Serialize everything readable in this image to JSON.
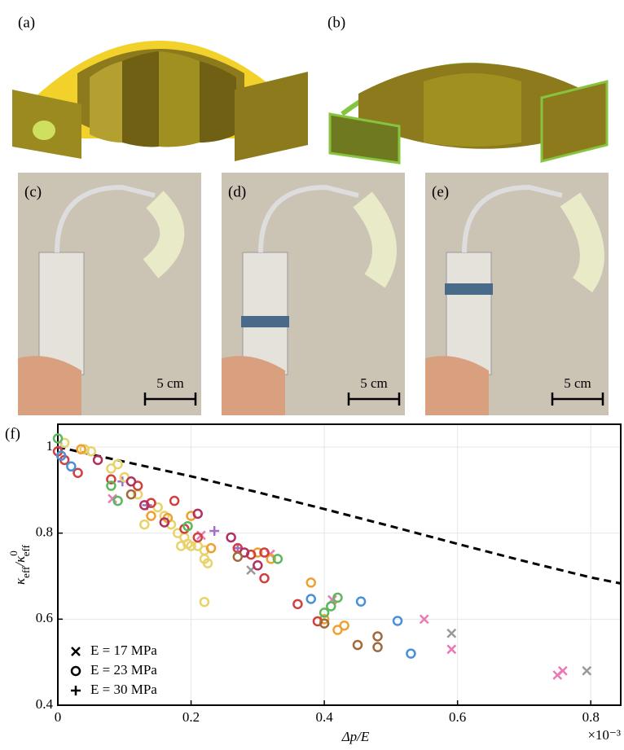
{
  "panels": {
    "a": "(a)",
    "b": "(b)",
    "c": "(c)",
    "d": "(d)",
    "e": "(e)"
  },
  "scale_bars": [
    "5 cm",
    "5 cm",
    "5 cm"
  ],
  "chart_data": {
    "type": "scatter",
    "panel_label": "(f)",
    "xlabel": "Δp/E",
    "x_multiplier": "×10⁻³",
    "ylabel": [
      "κ",
      "eff",
      "/κ",
      "0",
      "eff"
    ],
    "xlim": [
      0,
      0.845
    ],
    "ylim": [
      0.4,
      1.053
    ],
    "xticks": [
      0,
      0.2,
      0.4,
      0.6,
      0.8
    ],
    "yticks": [
      0.4,
      0.6,
      0.8,
      1
    ],
    "grid": true,
    "legend": [
      {
        "label": "E = 17 MPa",
        "marker": "x"
      },
      {
        "label": "E = 23 MPa",
        "marker": "o"
      },
      {
        "label": "E = 30 MPa",
        "marker": "+"
      }
    ],
    "legend_position": "lower left",
    "curve": {
      "x": [
        0,
        0.1,
        0.2,
        0.3,
        0.4,
        0.5,
        0.6,
        0.7,
        0.8,
        0.845
      ],
      "values": [
        1,
        0.966,
        0.932,
        0.895,
        0.856,
        0.816,
        0.775,
        0.735,
        0.697,
        0.683
      ],
      "color": "#000000",
      "dashed": true
    },
    "series": [
      {
        "marker": "x",
        "color": "#e87bb4",
        "x": [
          0.082,
          0.319,
          0.412,
          0.55,
          0.591,
          0.75,
          0.758,
          0.215
        ],
        "values": [
          0.88,
          0.751,
          0.645,
          0.6,
          0.53,
          0.47,
          0.48,
          0.795
        ]
      },
      {
        "marker": "x",
        "color": "#999999",
        "x": [
          0.29,
          0.591,
          0.794
        ],
        "values": [
          0.714,
          0.567,
          0.48
        ]
      },
      {
        "marker": "+",
        "color": "#a070c8",
        "x": [
          0.005,
          0.097,
          0.134,
          0.235,
          0.27
        ],
        "values": [
          1.0,
          0.92,
          0.865,
          0.805,
          0.765
        ]
      },
      {
        "marker": "o",
        "color": "#e8d36a",
        "x": [
          0.01,
          0.04,
          0.05,
          0.08,
          0.09,
          0.1,
          0.12,
          0.14,
          0.15,
          0.16,
          0.17,
          0.18,
          0.19,
          0.2,
          0.21,
          0.22,
          0.185,
          0.195,
          0.22,
          0.225,
          0.22,
          0.13
        ],
        "values": [
          1.01,
          0.995,
          0.99,
          0.95,
          0.96,
          0.93,
          0.89,
          0.87,
          0.86,
          0.84,
          0.82,
          0.8,
          0.79,
          0.77,
          0.77,
          0.76,
          0.77,
          0.775,
          0.74,
          0.73,
          0.64,
          0.82
        ]
      },
      {
        "marker": "o",
        "color": "#f0a030",
        "x": [
          0.035,
          0.14,
          0.165,
          0.2,
          0.23,
          0.3,
          0.32,
          0.38,
          0.4,
          0.42,
          0.43
        ],
        "values": [
          0.995,
          0.84,
          0.835,
          0.84,
          0.765,
          0.755,
          0.74,
          0.685,
          0.6,
          0.575,
          0.585
        ]
      },
      {
        "marker": "o",
        "color": "#d04040",
        "x": [
          0,
          0.01,
          0.03,
          0.08,
          0.12,
          0.14,
          0.175,
          0.19,
          0.21,
          0.27,
          0.29,
          0.31,
          0.31,
          0.36,
          0.39
        ],
        "values": [
          0.99,
          0.97,
          0.94,
          0.925,
          0.91,
          0.87,
          0.875,
          0.81,
          0.79,
          0.765,
          0.75,
          0.755,
          0.695,
          0.635,
          0.595
        ]
      },
      {
        "marker": "o",
        "color": "#b03060",
        "x": [
          0.06,
          0.11,
          0.13,
          0.16,
          0.21,
          0.26,
          0.28,
          0.3
        ],
        "values": [
          0.97,
          0.92,
          0.865,
          0.825,
          0.845,
          0.79,
          0.755,
          0.725
        ]
      },
      {
        "marker": "o",
        "color": "#a06a3a",
        "x": [
          0.11,
          0.27,
          0.4,
          0.45,
          0.48,
          0.48
        ],
        "values": [
          0.89,
          0.745,
          0.59,
          0.54,
          0.56,
          0.535
        ]
      },
      {
        "marker": "o",
        "color": "#5cb85c",
        "x": [
          0,
          0.08,
          0.195,
          0.33,
          0.41,
          0.42,
          0.4,
          0.09
        ],
        "values": [
          1.02,
          0.91,
          0.816,
          0.74,
          0.63,
          0.65,
          0.615,
          0.875
        ]
      },
      {
        "marker": "o",
        "color": "#4a90d9",
        "x": [
          0.02,
          0.38,
          0.455,
          0.51,
          0.53,
          0.005
        ],
        "values": [
          0.955,
          0.647,
          0.641,
          0.596,
          0.52,
          0.98
        ]
      }
    ]
  }
}
